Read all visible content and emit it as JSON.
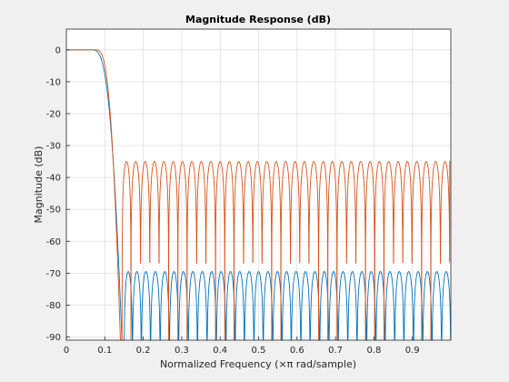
{
  "chart_data": {
    "type": "line",
    "title": "Magnitude Response (dB)",
    "xlabel": "Normalized Frequency (×π rad/sample)",
    "ylabel": "Magnitude (dB)",
    "xlim": [
      0,
      1
    ],
    "ylim": [
      -91,
      6.5
    ],
    "xticks": [
      0,
      0.1,
      0.2,
      0.3,
      0.4,
      0.5,
      0.6,
      0.7,
      0.8,
      0.9
    ],
    "xtick_labels": [
      "0",
      "0.1",
      "0.2",
      "0.3",
      "0.4",
      "0.5",
      "0.6",
      "0.7",
      "0.8",
      "0.9"
    ],
    "yticks": [
      0,
      -10,
      -20,
      -30,
      -40,
      -50,
      -60,
      -70,
      -80,
      -90
    ],
    "ytick_labels": [
      "0",
      "-10",
      "-20",
      "-30",
      "-40",
      "-50",
      "-60",
      "-70",
      "-80",
      "-90"
    ],
    "grid": true,
    "series": [
      {
        "color": "#0072bd",
        "passband_edge": 0.065,
        "transition_end": 0.15,
        "stopband_peak_db": -69.5,
        "sidelobe_nulls": [
          0.15,
          0.172,
          0.195,
          0.219,
          0.244,
          0.268,
          0.292,
          0.317,
          0.341,
          0.366,
          0.39,
          0.415,
          0.439,
          0.463,
          0.488,
          0.512,
          0.537,
          0.561,
          0.585,
          0.61,
          0.634,
          0.659,
          0.683,
          0.707,
          0.732,
          0.756,
          0.781,
          0.805,
          0.829,
          0.854,
          0.878,
          0.903,
          0.927,
          0.951,
          0.976,
          1.0
        ]
      },
      {
        "color": "#d95319",
        "passband_edge": 0.075,
        "transition_end": 0.145,
        "stopband_peak_db": -35,
        "sidelobe_nulls": [
          0.145,
          0.168,
          0.193,
          0.217,
          0.241,
          0.266,
          0.29,
          0.314,
          0.339,
          0.363,
          0.388,
          0.412,
          0.436,
          0.461,
          0.485,
          0.509,
          0.534,
          0.558,
          0.583,
          0.607,
          0.631,
          0.656,
          0.68,
          0.704,
          0.729,
          0.753,
          0.778,
          0.802,
          0.826,
          0.851,
          0.875,
          0.899,
          0.924,
          0.948,
          0.973,
          0.997
        ]
      }
    ]
  }
}
